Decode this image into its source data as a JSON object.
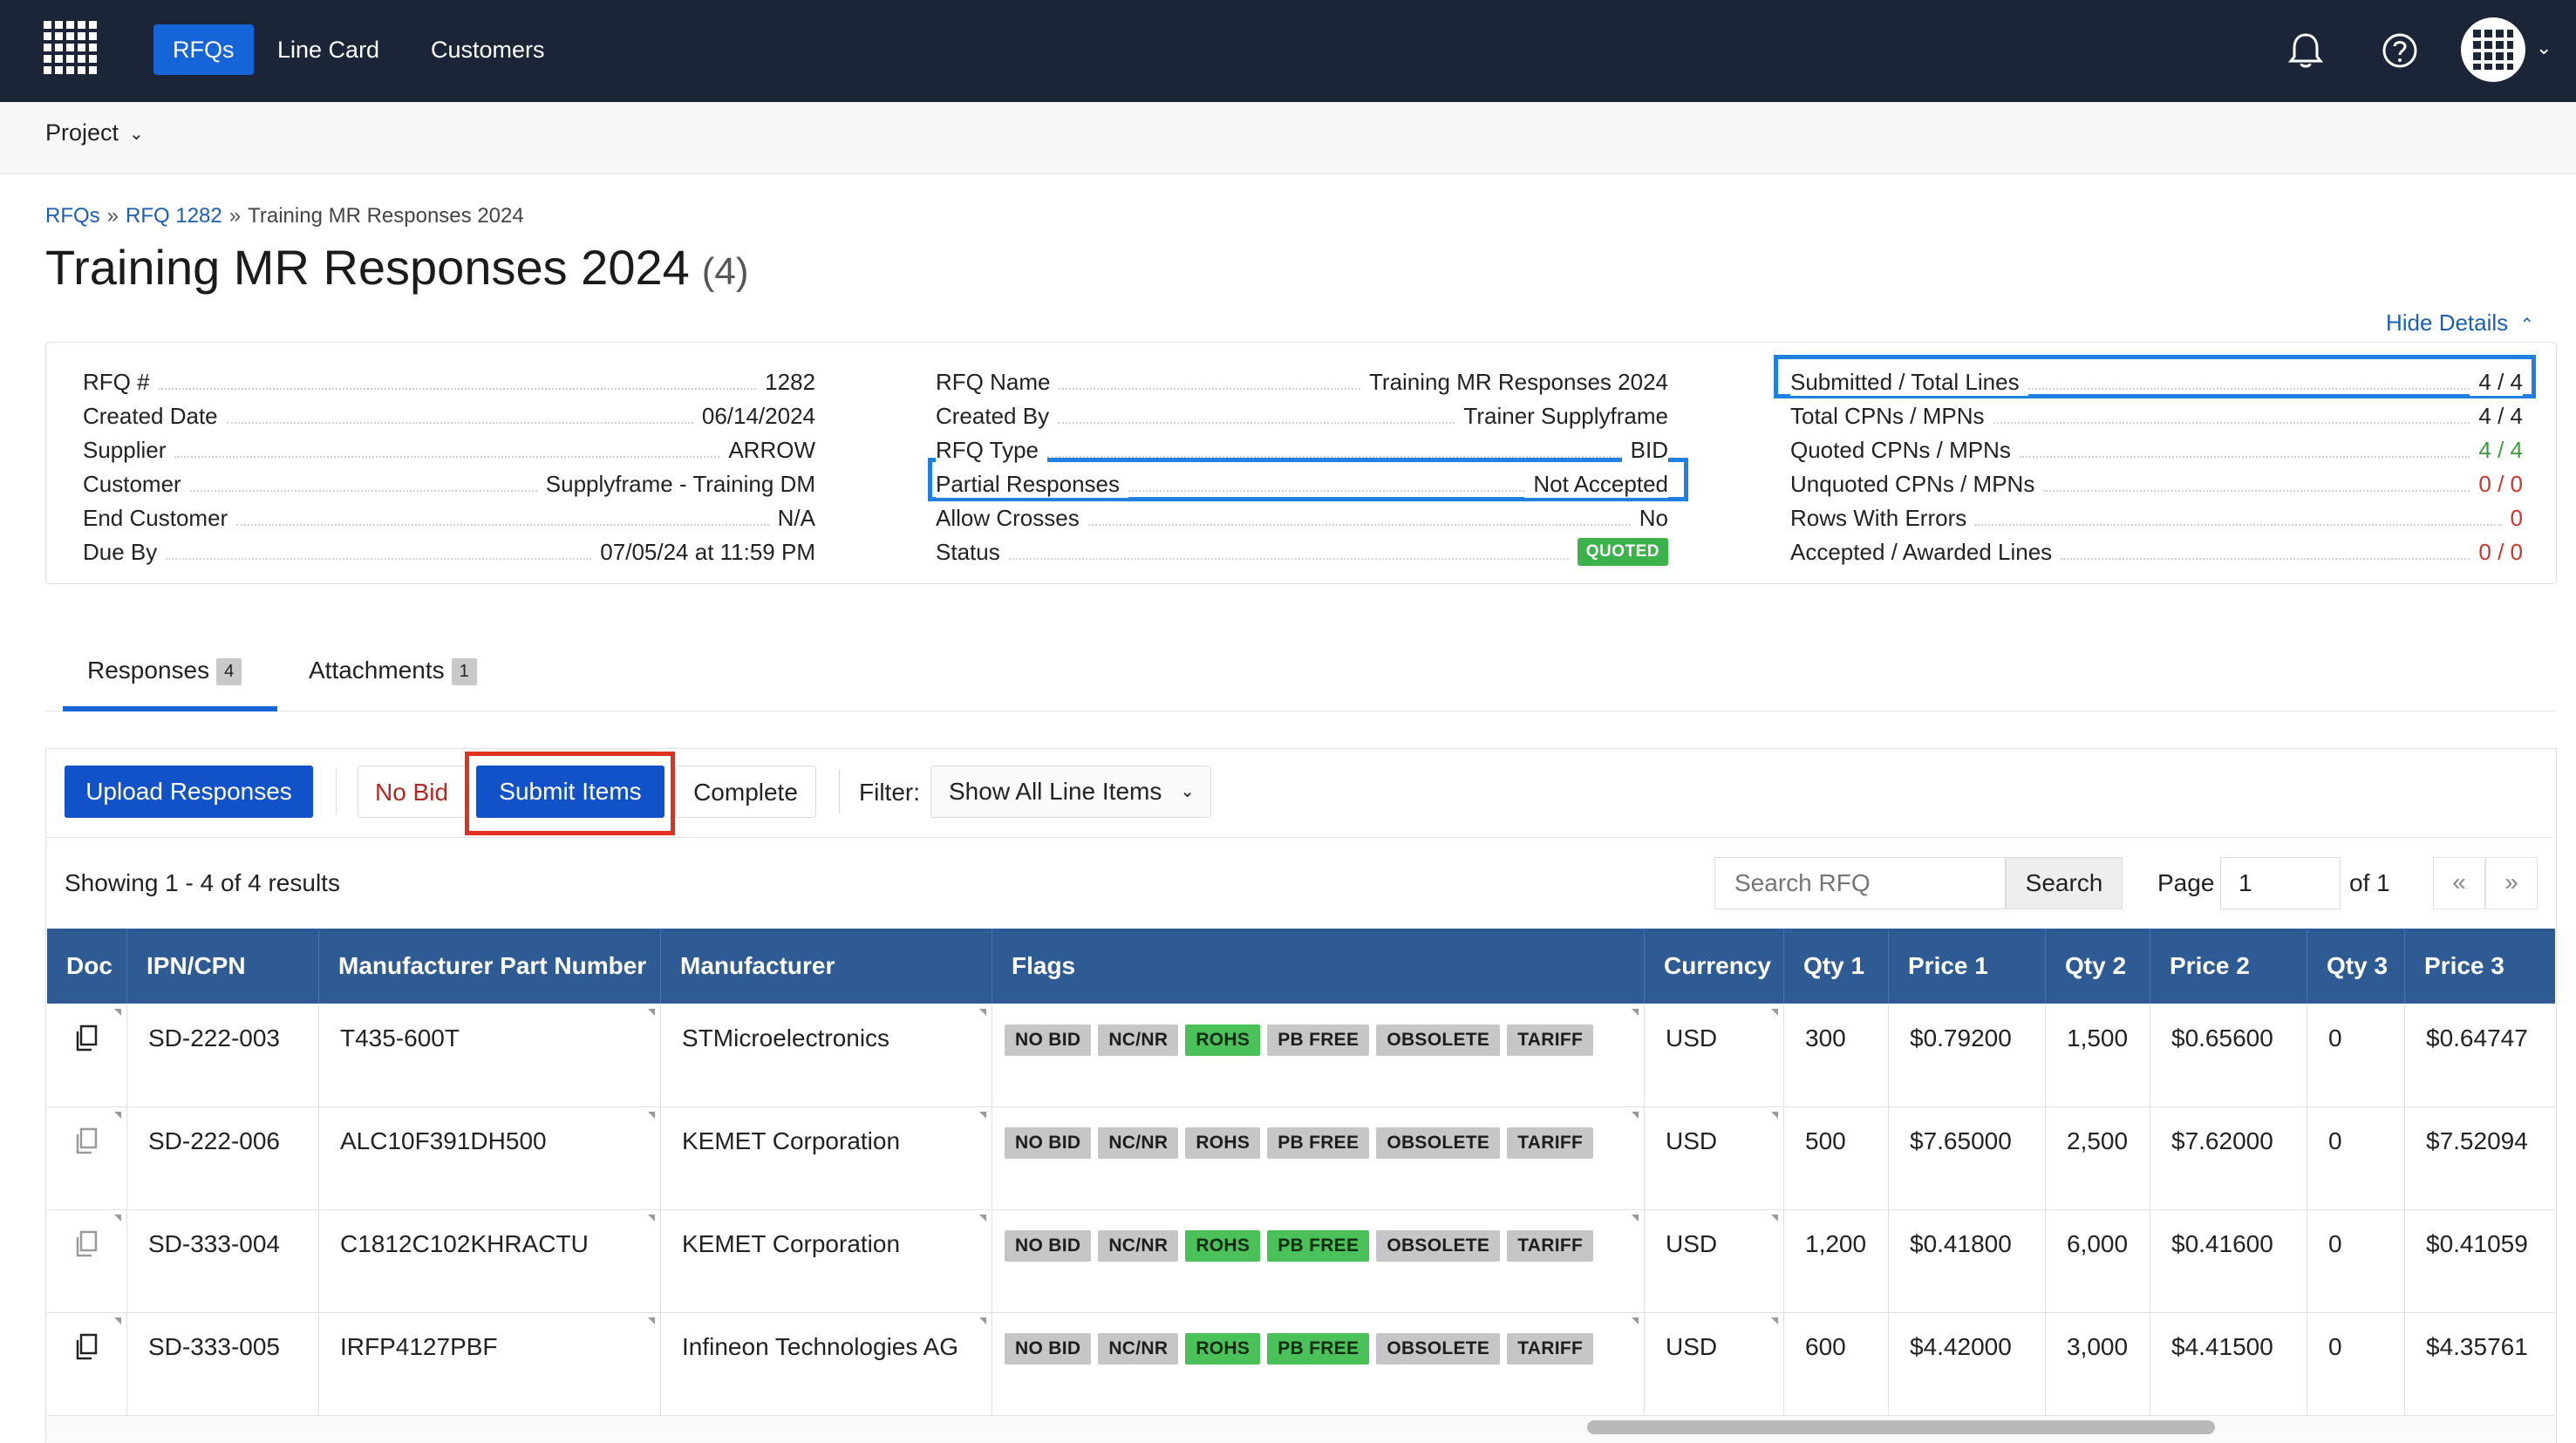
{
  "nav": {
    "links": [
      {
        "label": "RFQs",
        "active": true
      },
      {
        "label": "Line Card",
        "active": false
      },
      {
        "label": "Customers",
        "active": false
      }
    ],
    "icons": [
      "bell-icon",
      "help-icon",
      "avatar-grid-icon"
    ]
  },
  "subheader": {
    "project_label": "Project"
  },
  "breadcrumb": {
    "items": [
      "RFQs",
      "RFQ 1282",
      "Training MR Responses 2024"
    ],
    "separator": "»"
  },
  "page": {
    "title": "Training MR Responses 2024",
    "count": "(4)",
    "hide_details": "Hide Details"
  },
  "details": {
    "col1": [
      {
        "label": "RFQ #",
        "value": "1282"
      },
      {
        "label": "Created Date",
        "value": "06/14/2024"
      },
      {
        "label": "Supplier",
        "value": "ARROW"
      },
      {
        "label": "Customer",
        "value": "Supplyframe - Training DM"
      },
      {
        "label": "End Customer",
        "value": "N/A"
      },
      {
        "label": "Due By",
        "value": "07/05/24 at 11:59 PM"
      }
    ],
    "col2": [
      {
        "label": "RFQ Name",
        "value": "Training MR Responses 2024"
      },
      {
        "label": "Created By",
        "value": "Trainer Supplyframe"
      },
      {
        "label": "RFQ Type",
        "value": "BID"
      },
      {
        "label": "Partial Responses",
        "value": "Not Accepted"
      },
      {
        "label": "Allow Crosses",
        "value": "No"
      },
      {
        "label": "Status",
        "value": "QUOTED"
      }
    ],
    "col3": [
      {
        "label": "Submitted / Total Lines",
        "value": "4 / 4"
      },
      {
        "label": "Total CPNs / MPNs",
        "value": "4 / 4"
      },
      {
        "label": "Quoted CPNs / MPNs",
        "value": "4 / 4"
      },
      {
        "label": "Unquoted CPNs / MPNs",
        "value": "0 / 0"
      },
      {
        "label": "Rows With Errors",
        "value": "0"
      },
      {
        "label": "Accepted / Awarded Lines",
        "value": "0 / 0"
      }
    ]
  },
  "tabs": [
    {
      "label": "Responses",
      "badge": "4"
    },
    {
      "label": "Attachments",
      "badge": "1"
    }
  ],
  "toolbar": {
    "upload": "Upload Responses",
    "no_bid": "No Bid",
    "submit": "Submit Items",
    "complete": "Complete",
    "filter_label": "Filter:",
    "filter_value": "Show All Line Items"
  },
  "results": {
    "showing": "Showing 1 - 4 of 4 results",
    "search_placeholder": "Search RFQ",
    "search_button": "Search",
    "page_label": "Page",
    "page_value": "1",
    "page_of": "of 1",
    "first": "«",
    "last": "»"
  },
  "table": {
    "headers": [
      "Doc",
      "IPN/CPN",
      "Manufacturer Part Number",
      "Manufacturer",
      "Flags",
      "Currency",
      "Qty 1",
      "Price 1",
      "Qty 2",
      "Price 2",
      "Qty 3",
      "Price 3"
    ],
    "flag_labels": [
      "NO BID",
      "NC/NR",
      "ROHS",
      "PB FREE",
      "OBSOLETE",
      "TARIFF"
    ],
    "rows": [
      {
        "cpn": "SD-222-003",
        "mpn": "T435-600T",
        "mfr": "STMicroelectronics",
        "flags_on": [
          "ROHS"
        ],
        "currency": "USD",
        "qty1": "300",
        "price1": "$0.79200",
        "qty2": "1,500",
        "price2": "$0.65600",
        "qty3": "0",
        "price3": "$0.64747"
      },
      {
        "cpn": "SD-222-006",
        "mpn": "ALC10F391DH500",
        "mfr": "KEMET Corporation",
        "flags_on": [],
        "currency": "USD",
        "qty1": "500",
        "price1": "$7.65000",
        "qty2": "2,500",
        "price2": "$7.62000",
        "qty3": "0",
        "price3": "$7.52094"
      },
      {
        "cpn": "SD-333-004",
        "mpn": "C1812C102KHRACTU",
        "mfr": "KEMET Corporation",
        "flags_on": [
          "ROHS",
          "PB FREE"
        ],
        "currency": "USD",
        "qty1": "1,200",
        "price1": "$0.41800",
        "qty2": "6,000",
        "price2": "$0.41600",
        "qty3": "0",
        "price3": "$0.41059"
      },
      {
        "cpn": "SD-333-005",
        "mpn": "IRFP4127PBF",
        "mfr": "Infineon Technologies AG",
        "flags_on": [
          "ROHS",
          "PB FREE"
        ],
        "currency": "USD",
        "qty1": "600",
        "price1": "$4.42000",
        "qty2": "3,000",
        "price2": "$4.41500",
        "qty3": "0",
        "price3": "$4.35761"
      }
    ]
  },
  "colors": {
    "nav_bg": "#1c2537",
    "primary": "#1252c8",
    "table_header": "#2f5b95",
    "flag_on": "#4bc15a",
    "flag_off": "#c6c6c6",
    "highlight_blue": "#1f80e0",
    "highlight_red": "#e0301e"
  }
}
